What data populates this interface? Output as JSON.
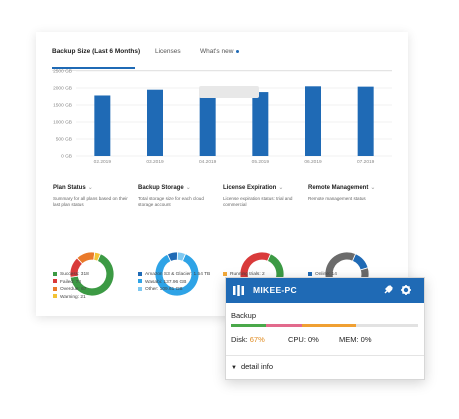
{
  "tabs": [
    {
      "label": "Backup Size (Last 6 Months)"
    },
    {
      "label": "Licenses"
    },
    {
      "label": "What's new"
    }
  ],
  "chart_data": {
    "type": "bar",
    "categories": [
      "02.2019",
      "03.2019",
      "04.2019",
      "05.2019",
      "06.2019",
      "07.2019"
    ],
    "values": [
      1780,
      1950,
      1720,
      1880,
      2050,
      2040
    ],
    "ylim": [
      0,
      2500
    ],
    "yticks": [
      "0 GB",
      "500 GB",
      "1000 GB",
      "1500 GB",
      "2000 GB",
      "2500 GB"
    ],
    "tick_values": [
      0,
      500,
      1000,
      1500,
      2000,
      2500
    ],
    "grid": true,
    "color": "#1f6ab5",
    "title": "",
    "xlabel": "",
    "ylabel": ""
  },
  "panels": [
    {
      "title": "Plan Status",
      "desc": "Summary for all plans based on their last plan status",
      "legend": [
        {
          "text": "Success: 318",
          "color": "#3c9a44"
        },
        {
          "text": "Failed: 74",
          "color": "#d93a3a"
        },
        {
          "text": "Overdue: 67",
          "color": "#ea7a2a"
        },
        {
          "text": "Warning: 21",
          "color": "#f2c335"
        }
      ],
      "slices": [
        318,
        74,
        67,
        21
      ]
    },
    {
      "title": "Backup Storage",
      "desc": "Total storage size for each cloud storage account",
      "legend": [
        {
          "text": "Amazon S3 & Glacier: 1.54 TB",
          "color": "#1f6ab5"
        },
        {
          "text": "Wasabi: 137.96 GB",
          "color": "#2ea3e6"
        },
        {
          "text": "Other: 109.61 GB",
          "color": "#7fc8f0"
        }
      ],
      "slices": [
        1577,
        138,
        110
      ]
    },
    {
      "title": "License Expiration",
      "desc": "License expiration status: trial and commercial",
      "legend": [
        {
          "text": "Running trials: 2",
          "color": "#f2a93b"
        }
      ],
      "slices": [
        4,
        1,
        1.2,
        3.8
      ]
    },
    {
      "title": "Remote Management",
      "desc": "Remote management status",
      "legend": [
        {
          "text": "Online: 14",
          "color": "#1f6ab5"
        }
      ],
      "slices": [
        14,
        86
      ]
    }
  ],
  "popup": {
    "name": "MIKEE-PC",
    "backup_label": "Backup",
    "disk_label": "Disk:",
    "disk_value": "67%",
    "cpu": "CPU: 0%",
    "mem": "MEM: 0%",
    "detail": "detail info",
    "disk_fraction": 0.67,
    "colors": {
      "green": "#4aa84a",
      "pink": "#e26a8c",
      "orange": "#f0a032",
      "header": "#1f6ab5"
    }
  }
}
